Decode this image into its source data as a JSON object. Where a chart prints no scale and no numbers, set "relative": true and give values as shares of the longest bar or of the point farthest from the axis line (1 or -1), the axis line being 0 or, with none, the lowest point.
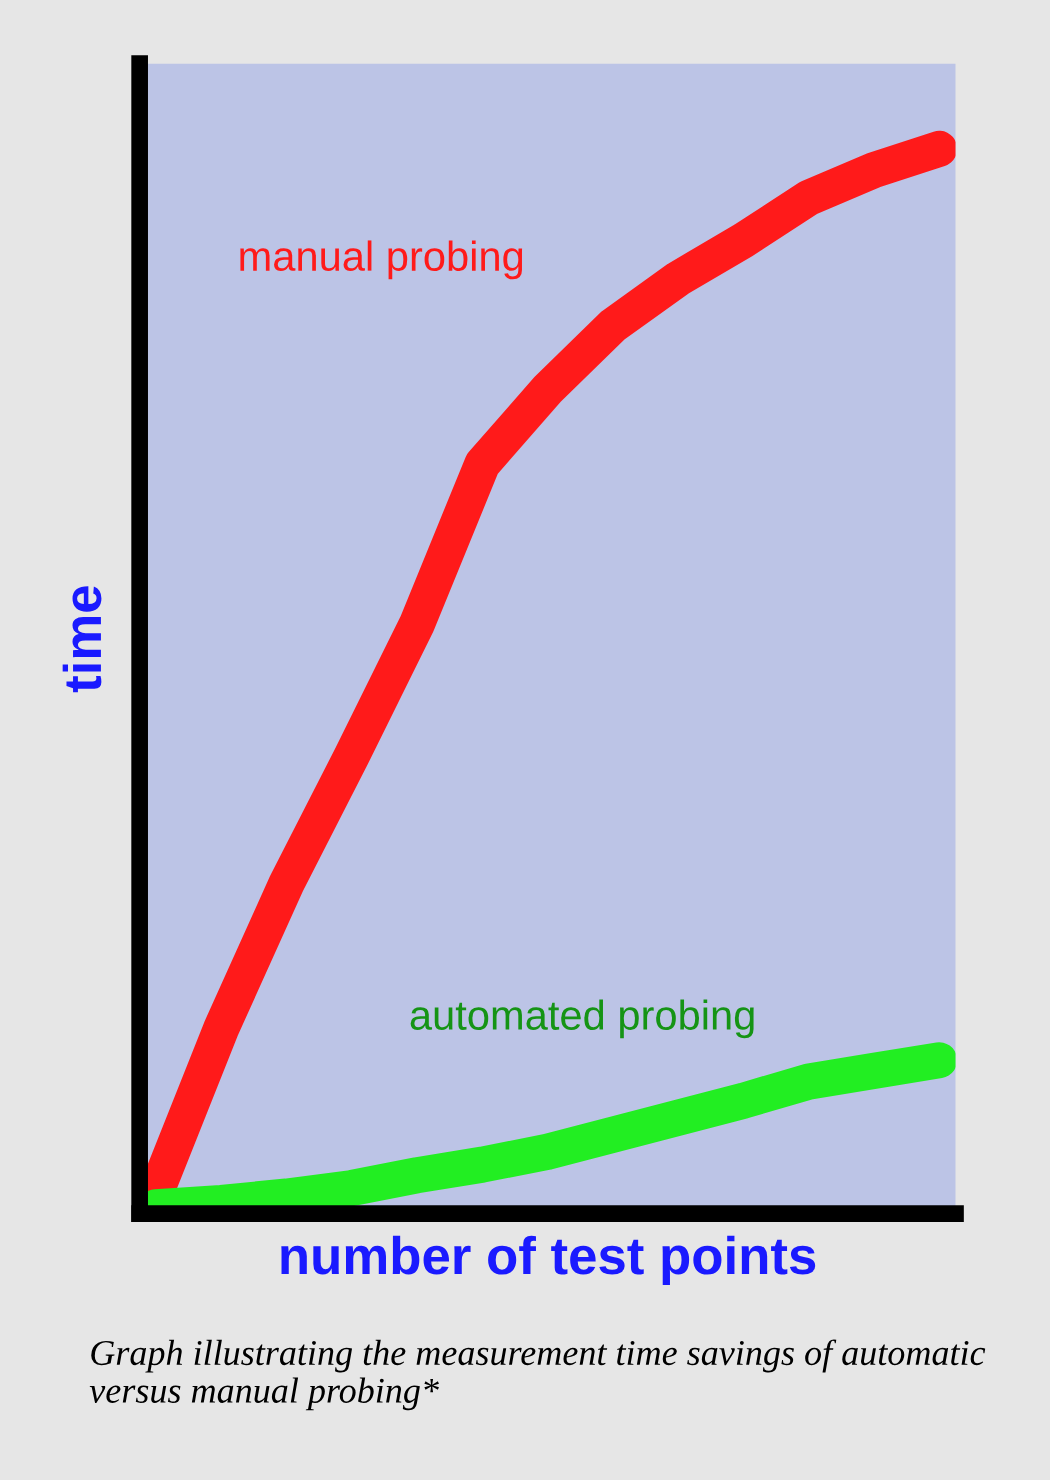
{
  "chart_data": {
    "type": "line",
    "relative": true,
    "xlabel": "number of test points",
    "ylabel": "time",
    "categories": [
      null,
      null,
      null,
      null,
      null,
      null,
      null,
      null,
      null,
      null,
      null,
      null,
      null
    ],
    "tick_labels": false,
    "grid": false,
    "legend": false,
    "line_style": "solid",
    "series": [
      {
        "name": "manual probing",
        "color": "#ff1a1a",
        "values": [
          0.02,
          0.174,
          0.31,
          0.43,
          0.554,
          0.704,
          0.774,
          0.834,
          0.878,
          0.914,
          0.954,
          0.98,
          1.0
        ]
      },
      {
        "name": "automated probing",
        "color": "#22ee22",
        "values": [
          0.006,
          0.01,
          0.016,
          0.024,
          0.036,
          0.046,
          0.058,
          0.074,
          0.09,
          0.106,
          0.124,
          0.134,
          0.144
        ]
      }
    ],
    "annotations": [
      "Graph illustrating the measurement time savings of automatic versus manual probing*"
    ]
  }
}
